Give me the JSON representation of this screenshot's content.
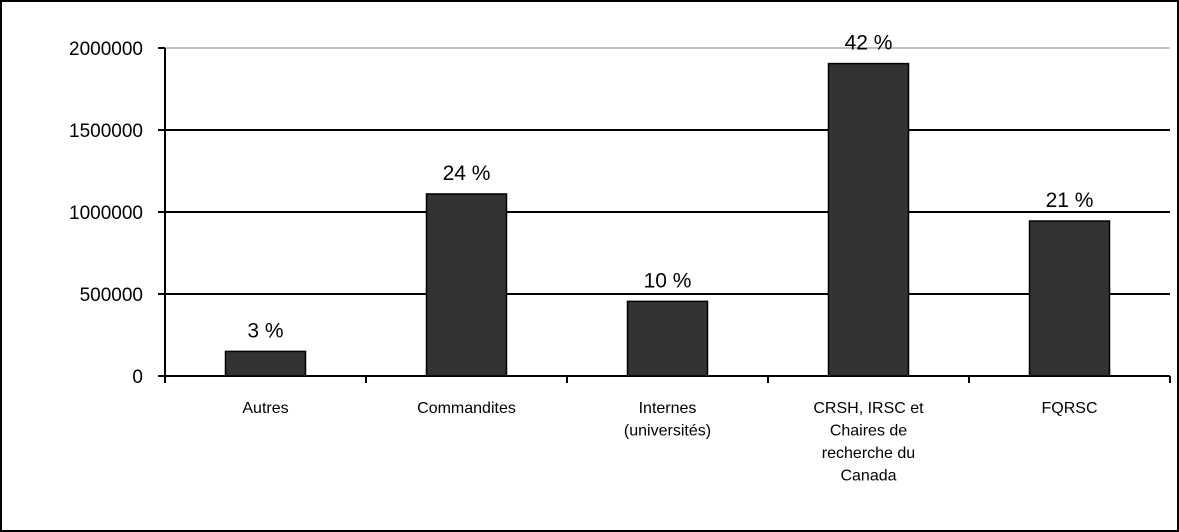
{
  "chart_data": {
    "type": "bar",
    "title": "",
    "xlabel": "",
    "ylabel": "",
    "categories": [
      [
        "Autres"
      ],
      [
        "Commandites"
      ],
      [
        "Internes",
        "(universités)"
      ],
      [
        "CRSH, IRSC et",
        "Chaires de",
        "recherche du",
        "Canada"
      ],
      [
        "FQRSC"
      ]
    ],
    "values": [
      150000,
      1110000,
      455000,
      1905000,
      945000
    ],
    "data_labels": [
      "3 %",
      "24 %",
      "10 %",
      "42 %",
      "21 %"
    ],
    "ylim": [
      0,
      2000000
    ],
    "yticks": [
      0,
      500000,
      1000000,
      1500000,
      2000000
    ],
    "ytick_labels": [
      "0",
      "500000",
      "1000000",
      "1500000",
      "2000000"
    ],
    "grid": "horizontal",
    "legend": "none",
    "bar_color": "#333333",
    "bar_edge_color": "#000000"
  }
}
